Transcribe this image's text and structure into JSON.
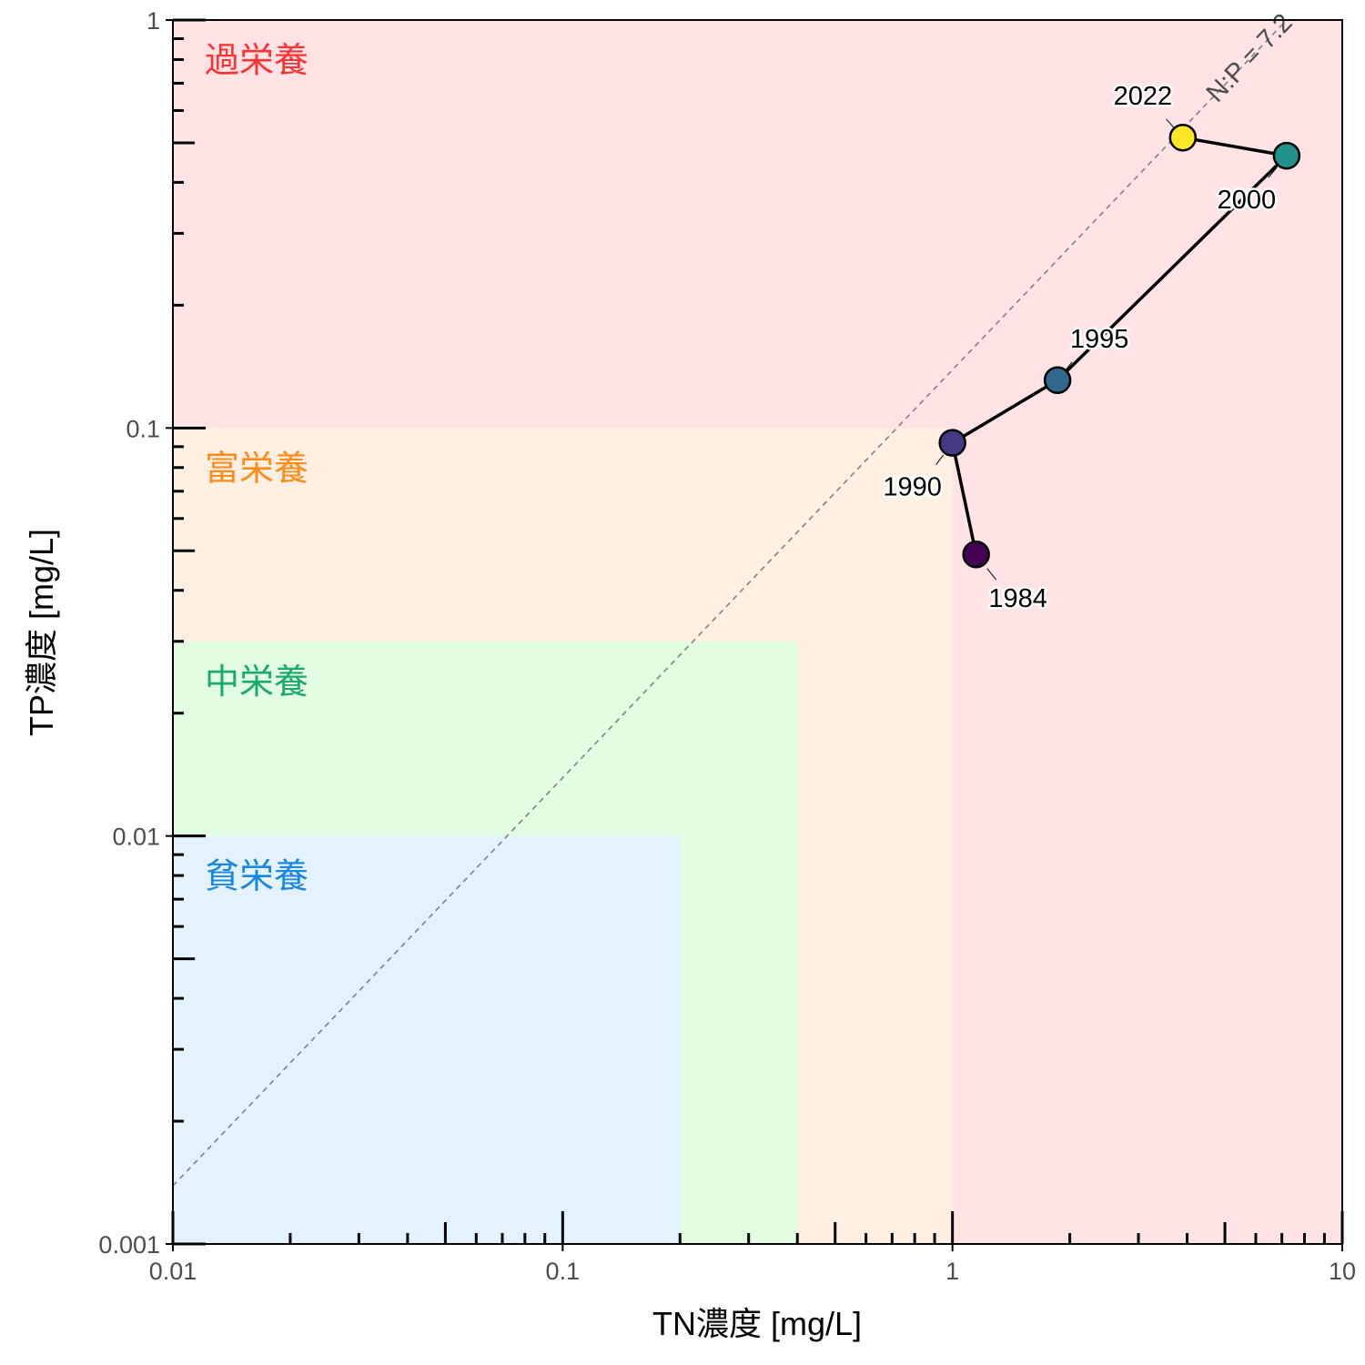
{
  "chart_data": {
    "type": "scatter",
    "xlabel": "TN濃度 [mg/L]",
    "ylabel": "TP濃度 [mg/L]",
    "x_scale": "log",
    "y_scale": "log",
    "xlim": [
      0.01,
      10
    ],
    "ylim": [
      0.001,
      1
    ],
    "x_ticks": [
      "0.01",
      "0.1",
      "1",
      "10"
    ],
    "y_ticks": [
      "0.001",
      "0.01",
      "0.1",
      "1"
    ],
    "grid": false,
    "zones": [
      {
        "label": "過栄養",
        "color": "#ff3333",
        "fill": "#ffe3e5",
        "tn_max": 10,
        "tp_max": 1
      },
      {
        "label": "富栄養",
        "color": "#ff8c1a",
        "fill": "#fff0e3",
        "tn_max": 1,
        "tp_max": 0.1
      },
      {
        "label": "中栄養",
        "color": "#1aaa6e",
        "fill": "#e3fde3",
        "tn_max": 0.4,
        "tp_max": 0.03
      },
      {
        "label": "貧栄養",
        "color": "#1a88e0",
        "fill": "#e3f2fd",
        "tn_max": 0.2,
        "tp_max": 0.01
      }
    ],
    "reference_line": {
      "label": "N:P = 7.2",
      "ratio": 7.2
    },
    "points": [
      {
        "year": "1984",
        "x": 1.15,
        "y": 0.049,
        "color": "#440154"
      },
      {
        "year": "1990",
        "x": 1.0,
        "y": 0.092,
        "color": "#443983"
      },
      {
        "year": "1995",
        "x": 1.86,
        "y": 0.131,
        "color": "#31688e"
      },
      {
        "year": "2000",
        "x": 7.2,
        "y": 0.465,
        "color": "#21918c"
      },
      {
        "year": "2022",
        "x": 3.9,
        "y": 0.515,
        "color": "#fde725"
      }
    ],
    "path_order": [
      "1984",
      "1990",
      "1995",
      "2000",
      "2022"
    ]
  }
}
